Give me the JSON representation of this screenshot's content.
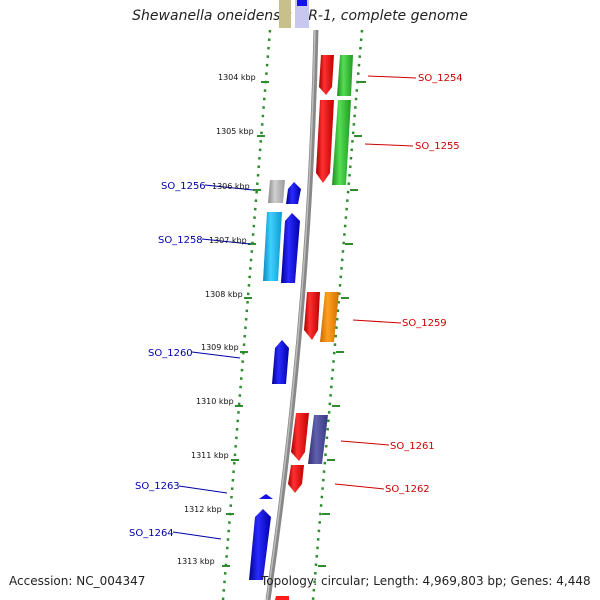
{
  "title": "Shewanella oneidensis MR-1, complete genome",
  "accession": "Accession: NC_004347",
  "summary": "Topology: circular; Length: 4,969,803 bp; Genes: 4,448",
  "kbp_labels": [
    "1304 kbp",
    "1305 kbp",
    "1306 kbp",
    "1307 kbp",
    "1308 kbp",
    "1309 kbp",
    "1310 kbp",
    "1311 kbp",
    "1312 kbp",
    "1313 kbp"
  ],
  "gene_labels": [
    "SO_1254",
    "SO_1255",
    "SO_1256",
    "SO_1258",
    "SO_1259",
    "SO_1260",
    "SO_1261",
    "SO_1262",
    "SO_1263",
    "SO_1264"
  ],
  "colors": {
    "forward_label": "#cc0000",
    "reverse_label": "#0000aa",
    "ruler_dots": "#2e8b2e",
    "backbone": "#888888",
    "red": "#ff1a1a",
    "green": "#33cc33",
    "blue": "#1414e6",
    "cyan": "#1ab8ee",
    "grey": "#a8a8a8",
    "orange": "#ff8c00",
    "purple": "#4a4a99"
  }
}
